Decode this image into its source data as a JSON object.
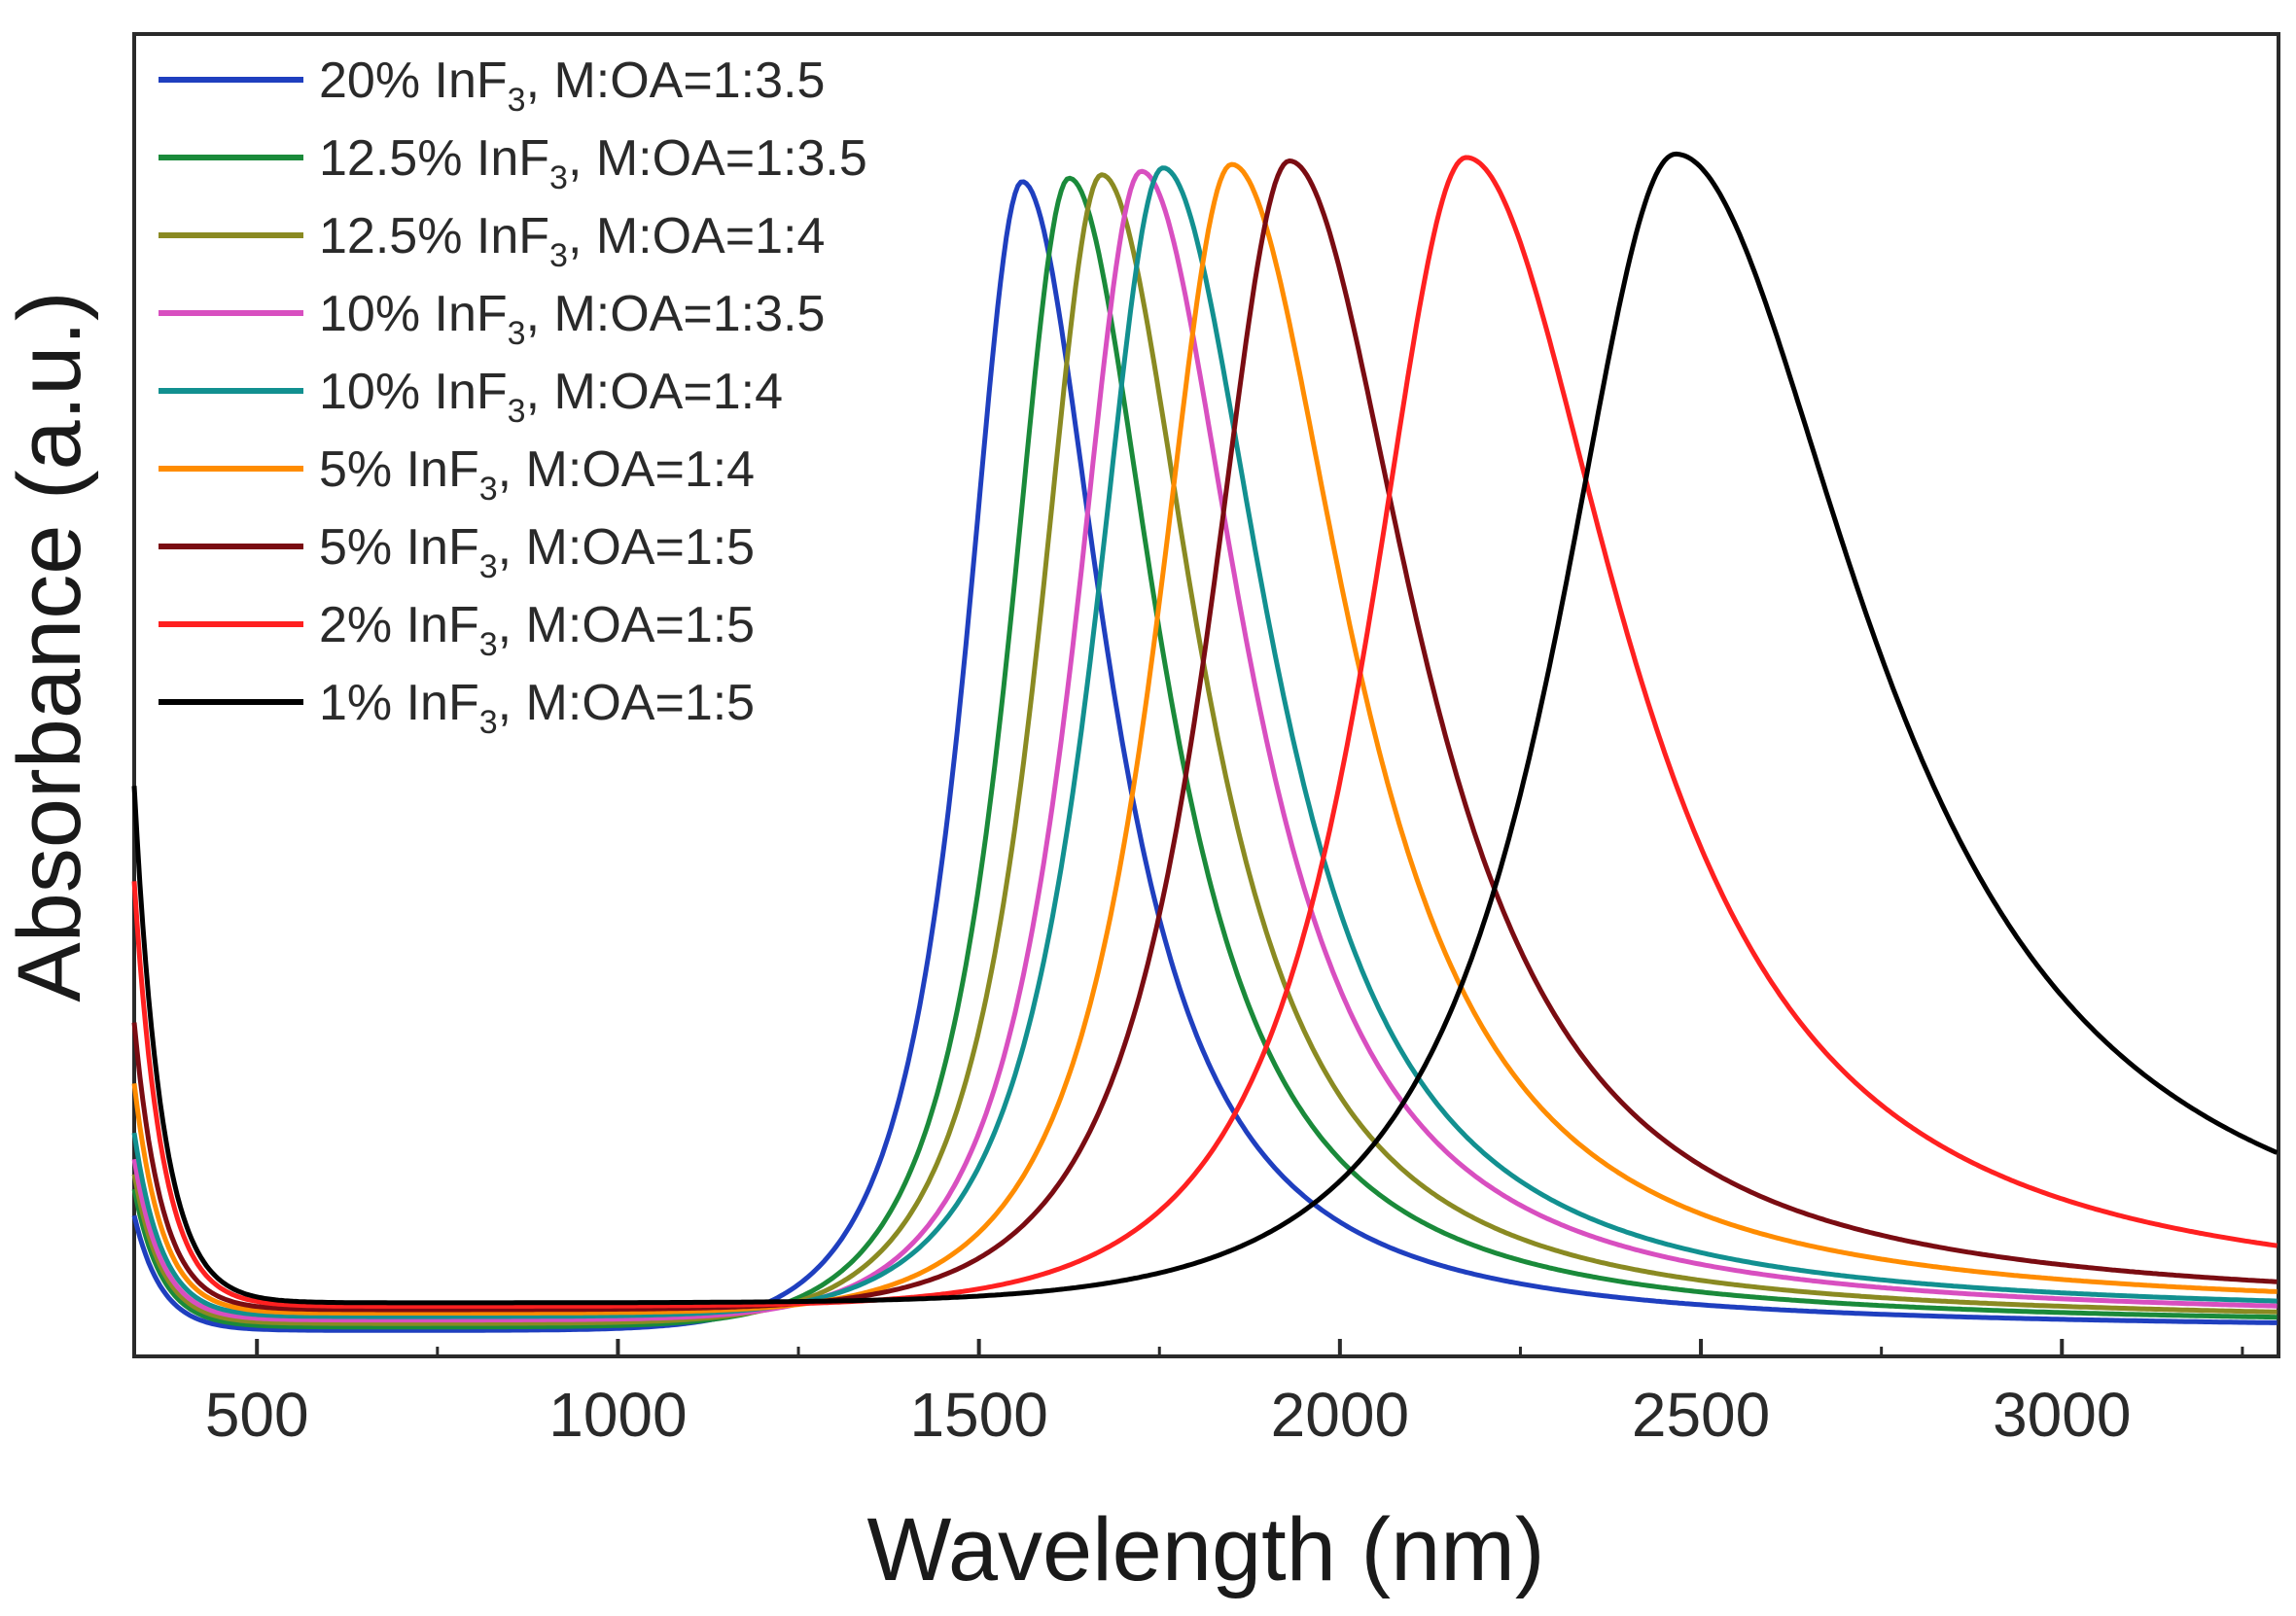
{
  "chart_data": {
    "type": "line",
    "title": "",
    "xlabel": "Wavelength (nm)",
    "ylabel": "Absorbance (a.u.)",
    "xlim": [
      330,
      3300
    ],
    "ylim": [
      0,
      1.08
    ],
    "xticks": [
      "500",
      "1000",
      "1500",
      "2000",
      "2500",
      "3000"
    ],
    "xtick_values": [
      500,
      1000,
      1500,
      2000,
      2500,
      3000
    ],
    "yticks": [],
    "grid": false,
    "legend_position": "top-left",
    "series": [
      {
        "name": "20% InF3, M:OA=1:3.5",
        "prefix": "20% InF",
        "sub": "3",
        "suffix": ", M:OA=1:3.5",
        "color": "#1f3fbf",
        "peak": 1560,
        "peak_value": 1.0,
        "uv_start": 0.1
      },
      {
        "name": "12.5% InF3, M:OA=1:3.5",
        "prefix": "12.5% InF",
        "sub": "3",
        "suffix": ", M:OA=1:3.5",
        "color": "#1a8a3a",
        "peak": 1625,
        "peak_value": 1.0,
        "uv_start": 0.12
      },
      {
        "name": "12.5% InF3, M:OA=1:4",
        "prefix": "12.5% InF",
        "sub": "3",
        "suffix": ", M:OA=1:4",
        "color": "#8a8a22",
        "peak": 1670,
        "peak_value": 1.0,
        "uv_start": 0.13
      },
      {
        "name": "10% InF3, M:OA=1:3.5",
        "prefix": "10% InF",
        "sub": "3",
        "suffix": ", M:OA=1:3.5",
        "color": "#d84fc0",
        "peak": 1725,
        "peak_value": 1.0,
        "uv_start": 0.14
      },
      {
        "name": "10% InF3, M:OA=1:4",
        "prefix": "10% InF",
        "sub": "3",
        "suffix": ", M:OA=1:4",
        "color": "#129090",
        "peak": 1755,
        "peak_value": 1.0,
        "uv_start": 0.16
      },
      {
        "name": "5% InF3, M:OA=1:4",
        "prefix": "5% InF",
        "sub": "3",
        "suffix": ", M:OA=1:4",
        "color": "#ff8c00",
        "peak": 1850,
        "peak_value": 1.0,
        "uv_start": 0.2
      },
      {
        "name": "5% InF3, M:OA=1:5",
        "prefix": "5% InF",
        "sub": "3",
        "suffix": ", M:OA=1:5",
        "color": "#7a0c12",
        "peak": 1930,
        "peak_value": 1.0,
        "uv_start": 0.25
      },
      {
        "name": "2% InF3, M:OA=1:5",
        "prefix": "2% InF",
        "sub": "3",
        "suffix": ", M:OA=1:5",
        "color": "#ff2020",
        "peak": 2175,
        "peak_value": 1.0,
        "uv_start": 0.37
      },
      {
        "name": "1% InF3, M:OA=1:5",
        "prefix": "1% InF",
        "sub": "3",
        "suffix": ", M:OA=1:5",
        "color": "#000000",
        "peak": 2465,
        "peak_value": 1.0,
        "uv_start": 0.45
      }
    ]
  }
}
